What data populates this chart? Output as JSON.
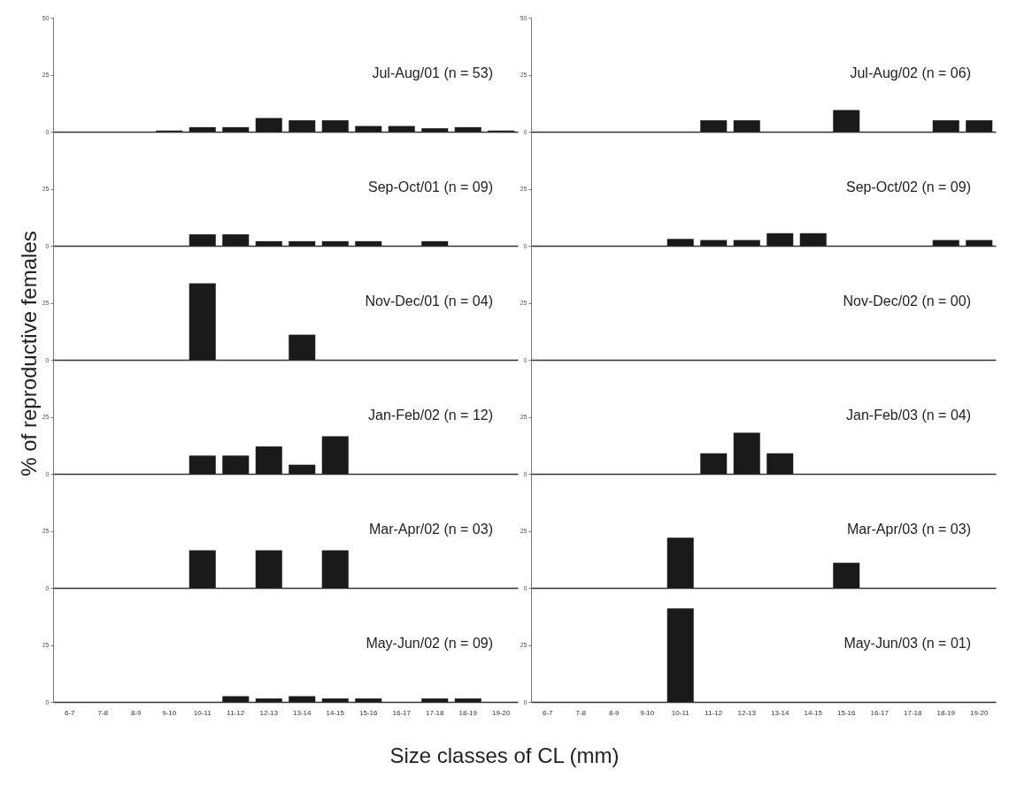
{
  "chart_data": [
    {
      "type": "bar",
      "ylabel": "% of reproductive females",
      "categories": [
        null,
        null,
        null,
        null,
        null,
        null,
        null,
        null,
        null,
        null,
        null,
        null,
        null,
        null
      ],
      "values": [
        0,
        0,
        0,
        0.5,
        2,
        2,
        6,
        5,
        5,
        2.5,
        2.5,
        1.5,
        2,
        0.5
      ],
      "color": "#1a1a1a",
      "ylim": [
        0,
        50
      ],
      "yticks": [
        0,
        25,
        50
      ],
      "annotations": [
        "Jul-Aug/01 (n = 53)"
      ],
      "tick_labels": "y"
    },
    {
      "type": "bar",
      "categories": [
        null,
        null,
        null,
        null,
        null,
        null,
        null,
        null,
        null,
        null,
        null,
        null,
        null,
        null
      ],
      "values": [
        0,
        0,
        0,
        0,
        0,
        5,
        5,
        0,
        0,
        9.5,
        0,
        0,
        5,
        5
      ],
      "color": "#1a1a1a",
      "ylim": [
        0,
        50
      ],
      "yticks": [
        0,
        25,
        50
      ],
      "annotations": [
        "Jul-Aug/02 (n = 06)"
      ],
      "tick_labels": "y"
    },
    {
      "type": "bar",
      "categories": [
        null,
        null,
        null,
        null,
        null,
        null,
        null,
        null,
        null,
        null,
        null,
        null,
        null,
        null
      ],
      "values": [
        0,
        0,
        0,
        0,
        5,
        5,
        2,
        2,
        2,
        2,
        0,
        2,
        0,
        0
      ],
      "color": "#1a1a1a",
      "ylim": [
        0,
        50
      ],
      "yticks": [
        0,
        25
      ],
      "annotations": [
        "Sep-Oct/01 (n = 09)"
      ],
      "tick_labels": "y"
    },
    {
      "type": "bar",
      "categories": [
        null,
        null,
        null,
        null,
        null,
        null,
        null,
        null,
        null,
        null,
        null,
        null,
        null,
        null
      ],
      "values": [
        0,
        0,
        0,
        0,
        3,
        2.5,
        2.5,
        5.5,
        5.5,
        0,
        0,
        0,
        2.5,
        2.5
      ],
      "color": "#1a1a1a",
      "ylim": [
        0,
        50
      ],
      "yticks": [
        0,
        25
      ],
      "annotations": [
        "Sep-Oct/02 (n = 09)"
      ],
      "tick_labels": "y"
    },
    {
      "type": "bar",
      "categories": [
        null,
        null,
        null,
        null,
        null,
        null,
        null,
        null,
        null,
        null,
        null,
        null,
        null,
        null
      ],
      "values": [
        0,
        0,
        0,
        0,
        33.5,
        0,
        0,
        11,
        0,
        0,
        0,
        0,
        0,
        0
      ],
      "color": "#1a1a1a",
      "ylim": [
        0,
        50
      ],
      "yticks": [
        0,
        25
      ],
      "annotations": [
        "Nov-Dec/01 (n = 04)"
      ],
      "tick_labels": "y"
    },
    {
      "type": "bar",
      "categories": [
        null,
        null,
        null,
        null,
        null,
        null,
        null,
        null,
        null,
        null,
        null,
        null,
        null,
        null
      ],
      "values": [
        0,
        0,
        0,
        0,
        0,
        0,
        0,
        0,
        0,
        0,
        0,
        0,
        0,
        0
      ],
      "color": "#1a1a1a",
      "ylim": [
        0,
        50
      ],
      "yticks": [
        0,
        25
      ],
      "annotations": [
        "Nov-Dec/02 (n = 00)"
      ],
      "tick_labels": "y"
    },
    {
      "type": "bar",
      "categories": [
        null,
        null,
        null,
        null,
        null,
        null,
        null,
        null,
        null,
        null,
        null,
        null,
        null,
        null
      ],
      "values": [
        0,
        0,
        0,
        0,
        8,
        8,
        12,
        4,
        16.5,
        0,
        0,
        0,
        0,
        0
      ],
      "color": "#1a1a1a",
      "ylim": [
        0,
        50
      ],
      "yticks": [
        0,
        25
      ],
      "annotations": [
        "Jan-Feb/02 (n = 12)"
      ],
      "tick_labels": "y"
    },
    {
      "type": "bar",
      "categories": [
        null,
        null,
        null,
        null,
        null,
        null,
        null,
        null,
        null,
        null,
        null,
        null,
        null,
        null
      ],
      "values": [
        0,
        0,
        0,
        0,
        0,
        9,
        18,
        9,
        0,
        0,
        0,
        0,
        0,
        0
      ],
      "color": "#1a1a1a",
      "ylim": [
        0,
        50
      ],
      "yticks": [
        0,
        25
      ],
      "annotations": [
        "Jan-Feb/03 (n = 04)"
      ],
      "tick_labels": "y"
    },
    {
      "type": "bar",
      "categories": [
        null,
        null,
        null,
        null,
        null,
        null,
        null,
        null,
        null,
        null,
        null,
        null,
        null,
        null
      ],
      "values": [
        0,
        0,
        0,
        0,
        16.5,
        0,
        16.5,
        0,
        16.5,
        0,
        0,
        0,
        0,
        0
      ],
      "color": "#1a1a1a",
      "ylim": [
        0,
        50
      ],
      "yticks": [
        0,
        25
      ],
      "annotations": [
        "Mar-Apr/02 (n = 03)"
      ],
      "tick_labels": "y"
    },
    {
      "type": "bar",
      "categories": [
        null,
        null,
        null,
        null,
        null,
        null,
        null,
        null,
        null,
        null,
        null,
        null,
        null,
        null
      ],
      "values": [
        0,
        0,
        0,
        0,
        22,
        0,
        0,
        0,
        0,
        11,
        0,
        0,
        0,
        0
      ],
      "color": "#1a1a1a",
      "ylim": [
        0,
        50
      ],
      "yticks": [
        0,
        25
      ],
      "annotations": [
        "Mar-Apr/03 (n = 03)"
      ],
      "tick_labels": "y"
    },
    {
      "type": "bar",
      "xlabel": "Size classes of CL (mm)",
      "categories": [
        "6-7",
        "7-8",
        "8-9",
        "9-10",
        "10-11",
        "11-12",
        "12-13",
        "13-14",
        "14-15",
        "15-16",
        "16-17",
        "17-18",
        "18-19",
        "19-20"
      ],
      "values": [
        0,
        0,
        0,
        0,
        0,
        2.5,
        1.5,
        2.5,
        1.5,
        1.5,
        0,
        1.5,
        1.5,
        0
      ],
      "color": "#1a1a1a",
      "ylim": [
        0,
        50
      ],
      "yticks": [
        0,
        25
      ],
      "annotations": [
        "May-Jun/02 (n = 09)"
      ]
    },
    {
      "type": "bar",
      "categories": [
        "6-7",
        "7-8",
        "8-9",
        "9-10",
        "10-11",
        "11-12",
        "12-13",
        "13-14",
        "14-15",
        "15-16",
        "16-17",
        "17-18",
        "18-19",
        "19-20"
      ],
      "values": [
        0,
        0,
        0,
        0,
        41,
        0,
        0,
        0,
        0,
        0,
        0,
        0,
        0,
        0
      ],
      "color": "#1a1a1a",
      "ylim": [
        0,
        50
      ],
      "yticks": [
        0,
        25
      ],
      "annotations": [
        "May-Jun/03 (n = 01)"
      ]
    }
  ]
}
